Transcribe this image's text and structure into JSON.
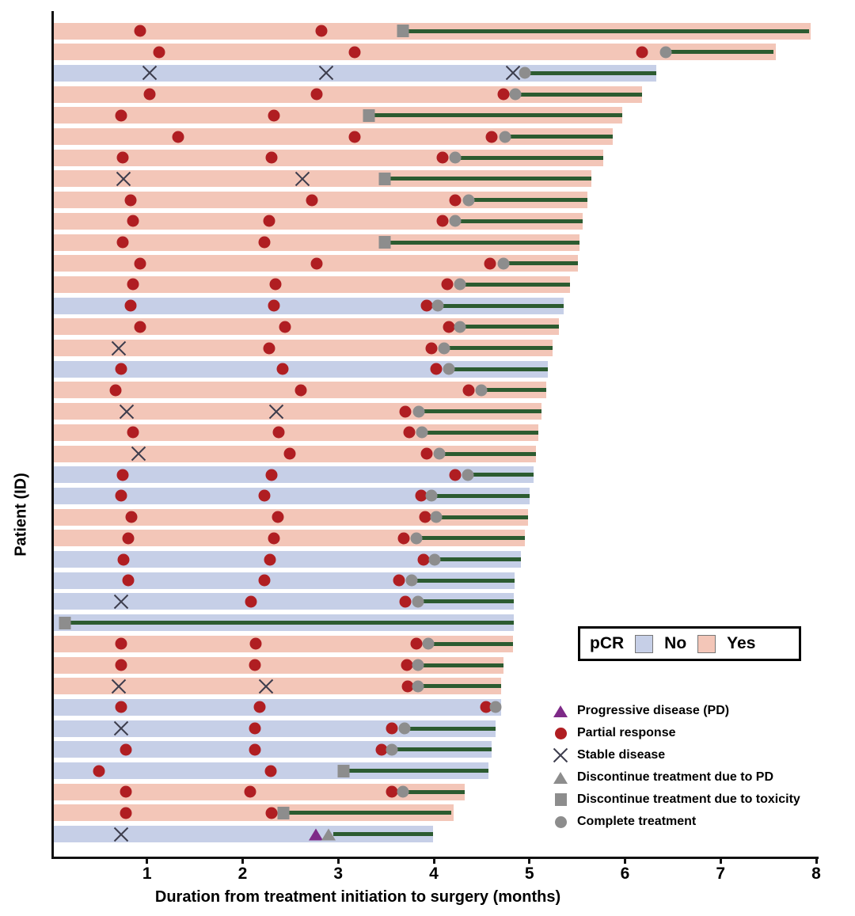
{
  "chart_data": {
    "type": "bar",
    "subtype": "swimmer-plot",
    "xlabel": "Duration from treatment initiation to surgery (months)",
    "ylabel": "Patient (ID)",
    "xlim": [
      0,
      8
    ],
    "x_ticks": [
      "1",
      "2",
      "3",
      "4",
      "5",
      "6",
      "7",
      "8"
    ],
    "grid": false,
    "pcr_legend": {
      "title": "pCR",
      "no_label": "No",
      "yes_label": "Yes"
    },
    "marker_legend": [
      {
        "type": "pd",
        "label": "Progressive disease (PD)"
      },
      {
        "type": "pr",
        "label": "Partial response"
      },
      {
        "type": "sd",
        "label": "Stable disease"
      },
      {
        "type": "dpd",
        "label": "Discontinue treatment due to PD"
      },
      {
        "type": "dtox",
        "label": "Discontinue treatment due to toxicity"
      },
      {
        "type": "ct",
        "label": "Complete treatment"
      }
    ],
    "colors": {
      "pcr_no": "#c6cfe7",
      "pcr_yes": "#f3c6b8",
      "response_red": "#b01e22",
      "marker_gray": "#8d8d8d",
      "green_line": "#2c5b30",
      "purple": "#7e2a88",
      "x_marker": "#3d3d4d"
    },
    "rows": [
      {
        "pcr": "yes",
        "end": 7.92,
        "line": [
          3.65,
          7.9
        ],
        "markers": [
          {
            "t": "pr",
            "x": 0.9
          },
          {
            "t": "pr",
            "x": 2.8
          },
          {
            "t": "dtox",
            "x": 3.65
          }
        ]
      },
      {
        "pcr": "yes",
        "end": 7.55,
        "line": [
          6.4,
          7.53
        ],
        "markers": [
          {
            "t": "pr",
            "x": 1.1
          },
          {
            "t": "pr",
            "x": 3.15
          },
          {
            "t": "pr",
            "x": 6.15
          },
          {
            "t": "ct",
            "x": 6.4
          }
        ]
      },
      {
        "pcr": "no",
        "end": 6.3,
        "line": [
          4.93,
          6.3
        ],
        "markers": [
          {
            "t": "sd",
            "x": 1.0
          },
          {
            "t": "sd",
            "x": 2.85
          },
          {
            "t": "sd",
            "x": 4.8
          },
          {
            "t": "ct",
            "x": 4.93
          }
        ]
      },
      {
        "pcr": "yes",
        "end": 6.15,
        "line": [
          4.83,
          6.15
        ],
        "markers": [
          {
            "t": "pr",
            "x": 1.0
          },
          {
            "t": "pr",
            "x": 2.75
          },
          {
            "t": "pr",
            "x": 4.7
          },
          {
            "t": "ct",
            "x": 4.83
          }
        ]
      },
      {
        "pcr": "yes",
        "end": 5.95,
        "line": [
          3.3,
          5.95
        ],
        "markers": [
          {
            "t": "pr",
            "x": 0.7
          },
          {
            "t": "pr",
            "x": 2.3
          },
          {
            "t": "dtox",
            "x": 3.3
          }
        ]
      },
      {
        "pcr": "yes",
        "end": 5.85,
        "line": [
          4.72,
          5.85
        ],
        "markers": [
          {
            "t": "pr",
            "x": 1.3
          },
          {
            "t": "pr",
            "x": 3.15
          },
          {
            "t": "pr",
            "x": 4.58
          },
          {
            "t": "ct",
            "x": 4.72
          }
        ]
      },
      {
        "pcr": "yes",
        "end": 5.75,
        "line": [
          4.2,
          5.75
        ],
        "markers": [
          {
            "t": "pr",
            "x": 0.72
          },
          {
            "t": "pr",
            "x": 2.28
          },
          {
            "t": "pr",
            "x": 4.07
          },
          {
            "t": "ct",
            "x": 4.2
          }
        ]
      },
      {
        "pcr": "yes",
        "end": 5.62,
        "line": [
          3.46,
          5.62
        ],
        "markers": [
          {
            "t": "sd",
            "x": 0.73
          },
          {
            "t": "sd",
            "x": 2.6
          },
          {
            "t": "dtox",
            "x": 3.46
          }
        ]
      },
      {
        "pcr": "yes",
        "end": 5.58,
        "line": [
          4.34,
          5.58
        ],
        "markers": [
          {
            "t": "pr",
            "x": 0.8
          },
          {
            "t": "pr",
            "x": 2.7
          },
          {
            "t": "pr",
            "x": 4.2
          },
          {
            "t": "ct",
            "x": 4.34
          }
        ]
      },
      {
        "pcr": "yes",
        "end": 5.53,
        "line": [
          4.2,
          5.53
        ],
        "markers": [
          {
            "t": "pr",
            "x": 0.83
          },
          {
            "t": "pr",
            "x": 2.25
          },
          {
            "t": "pr",
            "x": 4.07
          },
          {
            "t": "ct",
            "x": 4.2
          }
        ]
      },
      {
        "pcr": "yes",
        "end": 5.5,
        "line": [
          3.46,
          5.5
        ],
        "markers": [
          {
            "t": "pr",
            "x": 0.72
          },
          {
            "t": "pr",
            "x": 2.2
          },
          {
            "t": "dtox",
            "x": 3.46
          }
        ]
      },
      {
        "pcr": "yes",
        "end": 5.48,
        "line": [
          4.7,
          5.48
        ],
        "markers": [
          {
            "t": "pr",
            "x": 0.9
          },
          {
            "t": "pr",
            "x": 2.75
          },
          {
            "t": "pr",
            "x": 4.56
          },
          {
            "t": "ct",
            "x": 4.7
          }
        ]
      },
      {
        "pcr": "yes",
        "end": 5.4,
        "line": [
          4.25,
          5.4
        ],
        "markers": [
          {
            "t": "pr",
            "x": 0.83
          },
          {
            "t": "pr",
            "x": 2.32
          },
          {
            "t": "pr",
            "x": 4.12
          },
          {
            "t": "ct",
            "x": 4.25
          }
        ]
      },
      {
        "pcr": "no",
        "end": 5.33,
        "line": [
          4.02,
          5.33
        ],
        "markers": [
          {
            "t": "pr",
            "x": 0.8
          },
          {
            "t": "pr",
            "x": 2.3
          },
          {
            "t": "pr",
            "x": 3.9
          },
          {
            "t": "ct",
            "x": 4.02
          }
        ]
      },
      {
        "pcr": "yes",
        "end": 5.28,
        "line": [
          4.25,
          5.28
        ],
        "markers": [
          {
            "t": "pr",
            "x": 0.9
          },
          {
            "t": "pr",
            "x": 2.42
          },
          {
            "t": "pr",
            "x": 4.13
          },
          {
            "t": "ct",
            "x": 4.25
          }
        ]
      },
      {
        "pcr": "yes",
        "end": 5.22,
        "line": [
          4.08,
          5.22
        ],
        "markers": [
          {
            "t": "sd",
            "x": 0.68
          },
          {
            "t": "pr",
            "x": 2.25
          },
          {
            "t": "pr",
            "x": 3.95
          },
          {
            "t": "ct",
            "x": 4.08
          }
        ]
      },
      {
        "pcr": "no",
        "end": 5.17,
        "line": [
          4.13,
          5.17
        ],
        "markers": [
          {
            "t": "pr",
            "x": 0.7
          },
          {
            "t": "pr",
            "x": 2.39
          },
          {
            "t": "pr",
            "x": 4.0
          },
          {
            "t": "ct",
            "x": 4.13
          }
        ]
      },
      {
        "pcr": "yes",
        "end": 5.15,
        "line": [
          4.47,
          5.15
        ],
        "markers": [
          {
            "t": "pr",
            "x": 0.65
          },
          {
            "t": "pr",
            "x": 2.58
          },
          {
            "t": "pr",
            "x": 4.34
          },
          {
            "t": "ct",
            "x": 4.47
          }
        ]
      },
      {
        "pcr": "yes",
        "end": 5.1,
        "line": [
          3.82,
          5.1
        ],
        "markers": [
          {
            "t": "sd",
            "x": 0.76
          },
          {
            "t": "sd",
            "x": 2.33
          },
          {
            "t": "pr",
            "x": 3.68
          },
          {
            "t": "ct",
            "x": 3.82
          }
        ]
      },
      {
        "pcr": "yes",
        "end": 5.07,
        "line": [
          3.85,
          5.07
        ],
        "markers": [
          {
            "t": "pr",
            "x": 0.83
          },
          {
            "t": "pr",
            "x": 2.35
          },
          {
            "t": "pr",
            "x": 3.72
          },
          {
            "t": "ct",
            "x": 3.85
          }
        ]
      },
      {
        "pcr": "yes",
        "end": 5.04,
        "line": [
          4.03,
          5.04
        ],
        "markers": [
          {
            "t": "sd",
            "x": 0.89
          },
          {
            "t": "pr",
            "x": 2.47
          },
          {
            "t": "pr",
            "x": 3.9
          },
          {
            "t": "ct",
            "x": 4.03
          }
        ]
      },
      {
        "pcr": "no",
        "end": 5.02,
        "line": [
          4.33,
          5.02
        ],
        "markers": [
          {
            "t": "pr",
            "x": 0.72
          },
          {
            "t": "pr",
            "x": 2.28
          },
          {
            "t": "pr",
            "x": 4.2
          },
          {
            "t": "ct",
            "x": 4.33
          }
        ]
      },
      {
        "pcr": "no",
        "end": 4.98,
        "line": [
          3.95,
          4.98
        ],
        "markers": [
          {
            "t": "pr",
            "x": 0.7
          },
          {
            "t": "pr",
            "x": 2.2
          },
          {
            "t": "pr",
            "x": 3.84
          },
          {
            "t": "ct",
            "x": 3.95
          }
        ]
      },
      {
        "pcr": "yes",
        "end": 4.96,
        "line": [
          4.0,
          4.96
        ],
        "markers": [
          {
            "t": "pr",
            "x": 0.81
          },
          {
            "t": "pr",
            "x": 2.34
          },
          {
            "t": "pr",
            "x": 3.88
          },
          {
            "t": "ct",
            "x": 4.0
          }
        ]
      },
      {
        "pcr": "yes",
        "end": 4.93,
        "line": [
          3.79,
          4.93
        ],
        "markers": [
          {
            "t": "pr",
            "x": 0.78
          },
          {
            "t": "pr",
            "x": 2.3
          },
          {
            "t": "pr",
            "x": 3.66
          },
          {
            "t": "ct",
            "x": 3.79
          }
        ]
      },
      {
        "pcr": "no",
        "end": 4.89,
        "line": [
          3.98,
          4.89
        ],
        "markers": [
          {
            "t": "pr",
            "x": 0.73
          },
          {
            "t": "pr",
            "x": 2.26
          },
          {
            "t": "pr",
            "x": 3.87
          },
          {
            "t": "ct",
            "x": 3.98
          }
        ]
      },
      {
        "pcr": "no",
        "end": 4.82,
        "line": [
          3.74,
          4.82
        ],
        "markers": [
          {
            "t": "pr",
            "x": 0.78
          },
          {
            "t": "pr",
            "x": 2.2
          },
          {
            "t": "pr",
            "x": 3.61
          },
          {
            "t": "ct",
            "x": 3.74
          }
        ]
      },
      {
        "pcr": "no",
        "end": 4.81,
        "line": [
          3.81,
          4.81
        ],
        "markers": [
          {
            "t": "sd",
            "x": 0.7
          },
          {
            "t": "pr",
            "x": 2.06
          },
          {
            "t": "pr",
            "x": 3.68
          },
          {
            "t": "ct",
            "x": 3.81
          }
        ]
      },
      {
        "pcr": "no",
        "end": 4.81,
        "line": [
          0.12,
          4.81
        ],
        "markers": [
          {
            "t": "dtox",
            "x": 0.12
          }
        ]
      },
      {
        "pcr": "yes",
        "end": 4.8,
        "line": [
          3.92,
          4.8
        ],
        "markers": [
          {
            "t": "pr",
            "x": 0.7
          },
          {
            "t": "pr",
            "x": 2.11
          },
          {
            "t": "pr",
            "x": 3.79
          },
          {
            "t": "ct",
            "x": 3.92
          }
        ]
      },
      {
        "pcr": "yes",
        "end": 4.7,
        "line": [
          3.81,
          4.7
        ],
        "markers": [
          {
            "t": "pr",
            "x": 0.7
          },
          {
            "t": "pr",
            "x": 2.1
          },
          {
            "t": "pr",
            "x": 3.69
          },
          {
            "t": "ct",
            "x": 3.81
          }
        ]
      },
      {
        "pcr": "yes",
        "end": 4.68,
        "line": [
          3.81,
          4.68
        ],
        "markers": [
          {
            "t": "sd",
            "x": 0.68
          },
          {
            "t": "sd",
            "x": 2.22
          },
          {
            "t": "pr",
            "x": 3.7
          },
          {
            "t": "ct",
            "x": 3.81
          }
        ]
      },
      {
        "pcr": "no",
        "end": 4.68,
        "line": [
          4.62,
          4.68
        ],
        "markers": [
          {
            "t": "pr",
            "x": 0.7
          },
          {
            "t": "pr",
            "x": 2.15
          },
          {
            "t": "pr",
            "x": 4.52
          },
          {
            "t": "ct",
            "x": 4.62
          }
        ]
      },
      {
        "pcr": "no",
        "end": 4.62,
        "line": [
          3.67,
          4.62
        ],
        "markers": [
          {
            "t": "sd",
            "x": 0.7
          },
          {
            "t": "pr",
            "x": 2.1
          },
          {
            "t": "pr",
            "x": 3.54
          },
          {
            "t": "ct",
            "x": 3.67
          }
        ]
      },
      {
        "pcr": "no",
        "end": 4.58,
        "line": [
          3.54,
          4.58
        ],
        "markers": [
          {
            "t": "pr",
            "x": 0.75
          },
          {
            "t": "pr",
            "x": 2.1
          },
          {
            "t": "pr",
            "x": 3.43
          },
          {
            "t": "ct",
            "x": 3.54
          }
        ]
      },
      {
        "pcr": "no",
        "end": 4.55,
        "line": [
          3.03,
          4.55
        ],
        "markers": [
          {
            "t": "pr",
            "x": 0.47
          },
          {
            "t": "pr",
            "x": 2.27
          },
          {
            "t": "dtox",
            "x": 3.03
          }
        ]
      },
      {
        "pcr": "yes",
        "end": 4.3,
        "line": [
          3.65,
          4.3
        ],
        "markers": [
          {
            "t": "pr",
            "x": 0.75
          },
          {
            "t": "pr",
            "x": 2.05
          },
          {
            "t": "pr",
            "x": 3.54
          },
          {
            "t": "ct",
            "x": 3.65
          }
        ]
      },
      {
        "pcr": "yes",
        "end": 4.18,
        "line": [
          2.4,
          4.16
        ],
        "markers": [
          {
            "t": "pr",
            "x": 0.75
          },
          {
            "t": "pr",
            "x": 2.28
          },
          {
            "t": "dtox",
            "x": 2.4
          }
        ]
      },
      {
        "pcr": "no",
        "end": 3.97,
        "line": [
          2.92,
          3.97
        ],
        "markers": [
          {
            "t": "sd",
            "x": 0.7
          },
          {
            "t": "pd",
            "x": 2.74
          },
          {
            "t": "dpd",
            "x": 2.87
          }
        ]
      }
    ]
  }
}
